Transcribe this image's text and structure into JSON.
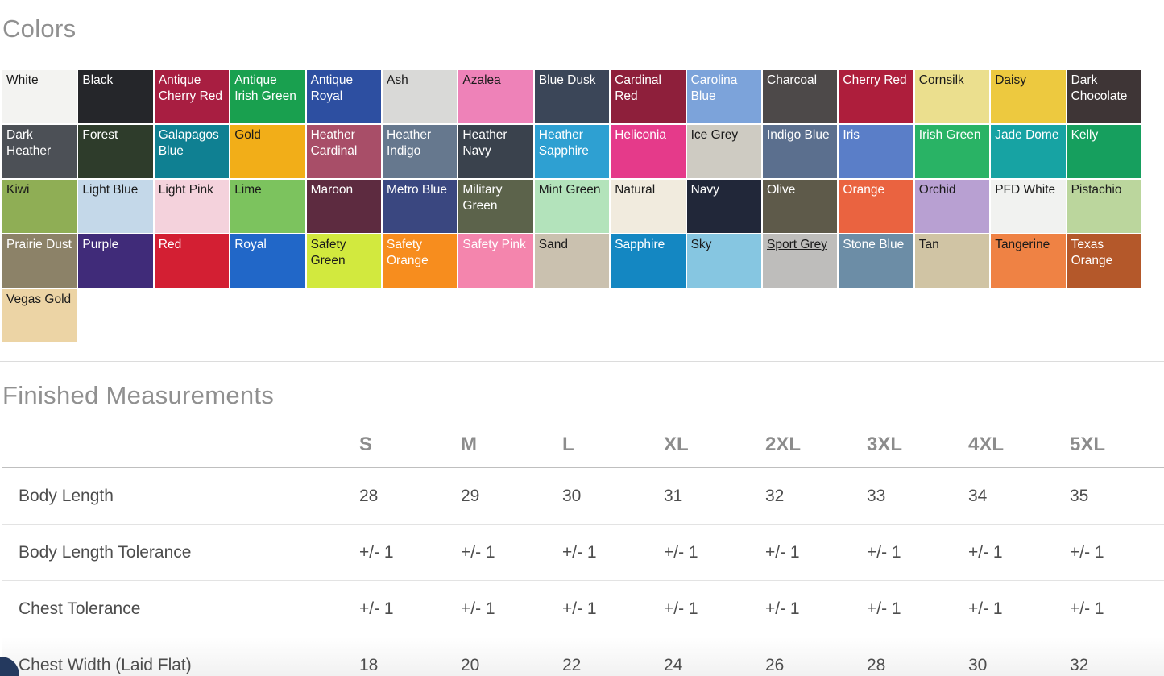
{
  "theme": {
    "heading_color": "#909090",
    "table_text_color": "#4d4d4d",
    "table_header_color": "#8c8c8c",
    "divider_color": "#dcdcdc",
    "chat_bubble_color": "#24395e"
  },
  "colors_section": {
    "title": "Colors",
    "swatches": [
      {
        "name": "White",
        "bg": "#f3f3f1",
        "fg": "#1a1a1a"
      },
      {
        "name": "Black",
        "bg": "#25262a",
        "fg": "#ffffff"
      },
      {
        "name": "Antique Cherry Red",
        "bg": "#a81e41",
        "fg": "#ffffff"
      },
      {
        "name": "Antique Irish Green",
        "bg": "#19a04f",
        "fg": "#ffffff"
      },
      {
        "name": "Antique Royal",
        "bg": "#2d4fa1",
        "fg": "#ffffff"
      },
      {
        "name": "Ash",
        "bg": "#d9d9d7",
        "fg": "#1a1a1a"
      },
      {
        "name": "Azalea",
        "bg": "#ee82b8",
        "fg": "#1a1a1a"
      },
      {
        "name": "Blue Dusk",
        "bg": "#3b4658",
        "fg": "#ffffff"
      },
      {
        "name": "Cardinal Red",
        "bg": "#8e1f3b",
        "fg": "#ffffff"
      },
      {
        "name": "Carolina Blue",
        "bg": "#7ca3da",
        "fg": "#ffffff"
      },
      {
        "name": "Charcoal",
        "bg": "#4d4949",
        "fg": "#ffffff"
      },
      {
        "name": "Cherry Red",
        "bg": "#ae1e3c",
        "fg": "#ffffff"
      },
      {
        "name": "Cornsilk",
        "bg": "#ebdf8e",
        "fg": "#1a1a1a"
      },
      {
        "name": "Daisy",
        "bg": "#edc93f",
        "fg": "#1a1a1a"
      },
      {
        "name": "Dark Chocolate",
        "bg": "#3e3536",
        "fg": "#ffffff"
      },
      {
        "name": "Dark Heather",
        "bg": "#4c5056",
        "fg": "#ffffff"
      },
      {
        "name": "Forest",
        "bg": "#2e3c2b",
        "fg": "#ffffff"
      },
      {
        "name": "Galapagos Blue",
        "bg": "#0f8092",
        "fg": "#ffffff"
      },
      {
        "name": "Gold",
        "bg": "#f2ae18",
        "fg": "#1a1a1a"
      },
      {
        "name": "Heather Cardinal",
        "bg": "#a84e68",
        "fg": "#ffffff"
      },
      {
        "name": "Heather Indigo",
        "bg": "#66788e",
        "fg": "#ffffff"
      },
      {
        "name": "Heather Navy",
        "bg": "#3a424d",
        "fg": "#ffffff"
      },
      {
        "name": "Heather Sapphire",
        "bg": "#2ea0d2",
        "fg": "#ffffff"
      },
      {
        "name": "Heliconia",
        "bg": "#e53a8a",
        "fg": "#ffffff"
      },
      {
        "name": "Ice Grey",
        "bg": "#cecbc2",
        "fg": "#1a1a1a"
      },
      {
        "name": "Indigo Blue",
        "bg": "#5b6f8e",
        "fg": "#ffffff"
      },
      {
        "name": "Iris",
        "bg": "#5a7ec8",
        "fg": "#ffffff"
      },
      {
        "name": "Irish Green",
        "bg": "#29b365",
        "fg": "#ffffff"
      },
      {
        "name": "Jade Dome",
        "bg": "#17a3a3",
        "fg": "#ffffff"
      },
      {
        "name": "Kelly",
        "bg": "#169f5e",
        "fg": "#ffffff"
      },
      {
        "name": "Kiwi",
        "bg": "#8fae55",
        "fg": "#1a1a1a"
      },
      {
        "name": "Light Blue",
        "bg": "#c4d8e9",
        "fg": "#1a1a1a"
      },
      {
        "name": "Light Pink",
        "bg": "#f4d2dc",
        "fg": "#1a1a1a"
      },
      {
        "name": "Lime",
        "bg": "#7cc35e",
        "fg": "#1a1a1a"
      },
      {
        "name": "Maroon",
        "bg": "#5d2b40",
        "fg": "#ffffff"
      },
      {
        "name": "Metro Blue",
        "bg": "#3a4780",
        "fg": "#ffffff"
      },
      {
        "name": "Military Green",
        "bg": "#5c634b",
        "fg": "#ffffff"
      },
      {
        "name": "Mint Green",
        "bg": "#b3e3bb",
        "fg": "#1a1a1a"
      },
      {
        "name": "Natural",
        "bg": "#f1ebde",
        "fg": "#1a1a1a"
      },
      {
        "name": "Navy",
        "bg": "#212739",
        "fg": "#ffffff"
      },
      {
        "name": "Olive",
        "bg": "#5e5a4a",
        "fg": "#ffffff"
      },
      {
        "name": "Orange",
        "bg": "#ea6340",
        "fg": "#ffffff"
      },
      {
        "name": "Orchid",
        "bg": "#b8a0d2",
        "fg": "#1a1a1a"
      },
      {
        "name": "PFD White",
        "bg": "#f1f2f0",
        "fg": "#1a1a1a"
      },
      {
        "name": "Pistachio",
        "bg": "#bbd69d",
        "fg": "#1a1a1a"
      },
      {
        "name": "Prairie Dust",
        "bg": "#8c8268",
        "fg": "#ffffff"
      },
      {
        "name": "Purple",
        "bg": "#402b79",
        "fg": "#ffffff"
      },
      {
        "name": "Red",
        "bg": "#d31f33",
        "fg": "#ffffff"
      },
      {
        "name": "Royal",
        "bg": "#2167c8",
        "fg": "#ffffff"
      },
      {
        "name": "Safety Green",
        "bg": "#d2e93e",
        "fg": "#1a1a1a"
      },
      {
        "name": "Safety Orange",
        "bg": "#f78d1e",
        "fg": "#ffffff"
      },
      {
        "name": "Safety Pink",
        "bg": "#f485ad",
        "fg": "#ffffff"
      },
      {
        "name": "Sand",
        "bg": "#cac1af",
        "fg": "#1a1a1a"
      },
      {
        "name": "Sapphire",
        "bg": "#1487c2",
        "fg": "#ffffff"
      },
      {
        "name": "Sky",
        "bg": "#86c6e1",
        "fg": "#1a1a1a"
      },
      {
        "name": "Sport Grey",
        "bg": "#bebdbb",
        "fg": "#1a1a1a",
        "underline": true
      },
      {
        "name": "Stone Blue",
        "bg": "#6c8da6",
        "fg": "#ffffff"
      },
      {
        "name": "Tan",
        "bg": "#d0c4a4",
        "fg": "#1a1a1a"
      },
      {
        "name": "Tangerine",
        "bg": "#ef8244",
        "fg": "#1a1a1a"
      },
      {
        "name": "Texas Orange",
        "bg": "#b4582a",
        "fg": "#ffffff"
      },
      {
        "name": "Vegas Gold",
        "bg": "#ecd4a5",
        "fg": "#1a1a1a"
      }
    ]
  },
  "measurements_section": {
    "title": "Finished Measurements",
    "sizes": [
      "S",
      "M",
      "L",
      "XL",
      "2XL",
      "3XL",
      "4XL",
      "5XL"
    ],
    "rows": [
      {
        "label": "Body Length",
        "values": [
          "28",
          "29",
          "30",
          "31",
          "32",
          "33",
          "34",
          "35"
        ]
      },
      {
        "label": "Body Length Tolerance",
        "values": [
          "+/- 1",
          "+/- 1",
          "+/- 1",
          "+/- 1",
          "+/- 1",
          "+/- 1",
          "+/- 1",
          "+/- 1"
        ]
      },
      {
        "label": "Chest Tolerance",
        "values": [
          "+/- 1",
          "+/- 1",
          "+/- 1",
          "+/- 1",
          "+/- 1",
          "+/- 1",
          "+/- 1",
          "+/- 1"
        ]
      },
      {
        "label": "Chest Width (Laid Flat)",
        "values": [
          "18",
          "20",
          "22",
          "24",
          "26",
          "28",
          "30",
          "32"
        ],
        "highlight": true
      }
    ]
  }
}
